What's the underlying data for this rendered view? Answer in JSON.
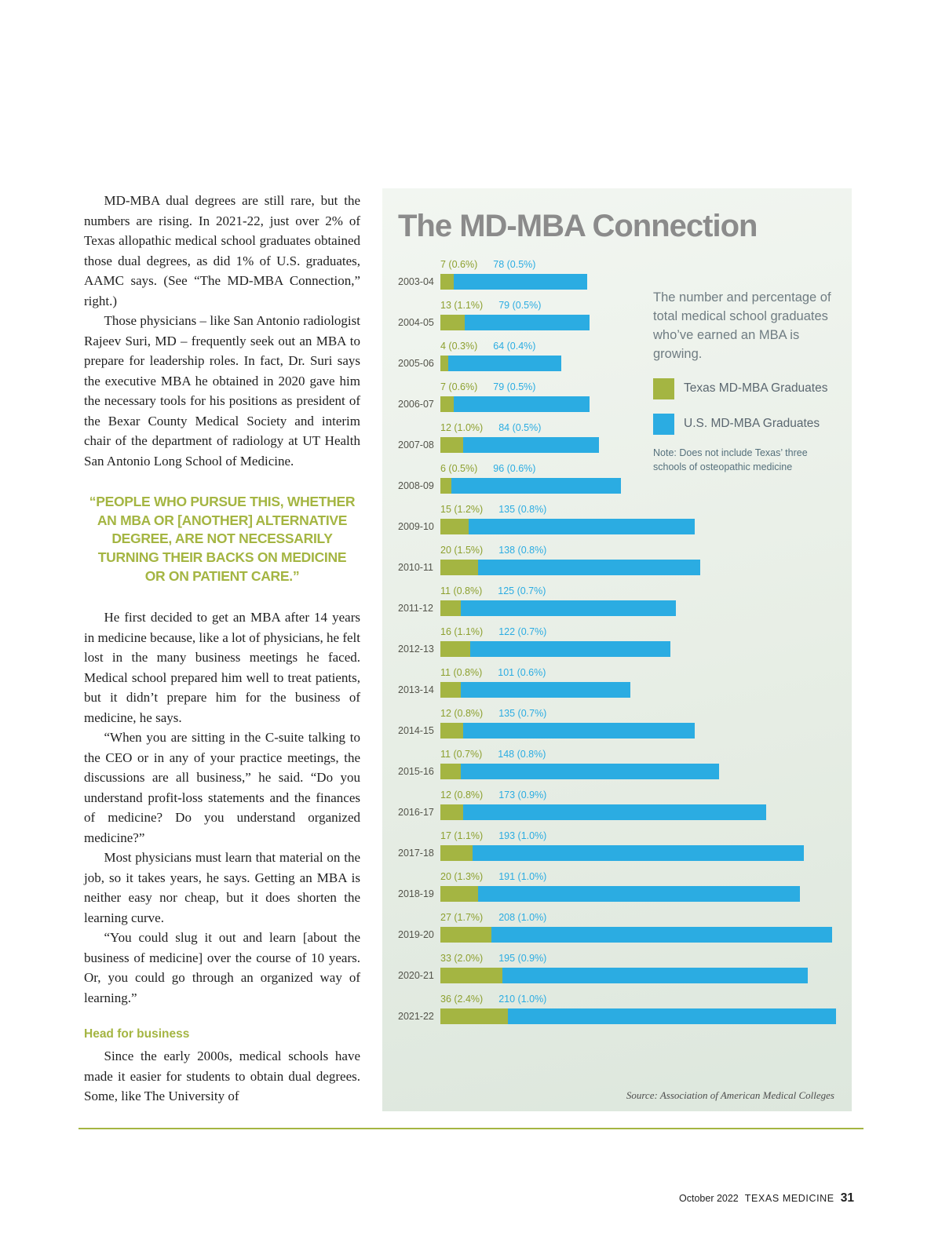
{
  "article": {
    "intro_paragraphs": [
      "MD-MBA dual degrees are still rare, but the numbers are rising. In 2021-22, just over 2% of Texas allopathic medical school graduates obtained those dual degrees, as did 1% of U.S. graduates, AAMC says. (See “The MD-MBA Connection,” right.)",
      "Those physicians – like San Antonio radiologist Rajeev Suri, MD – frequently seek out an MBA to prepare for leadership roles. In fact, Dr. Suri says the executive MBA he obtained in 2020 gave him the necessary tools for his positions as president of the Bexar County Medical Society and interim chair of the department of radiology at UT Health San Antonio Long School of Medicine."
    ],
    "pull_quote": "“People who pursue this, whether an MBA or [another] alternative degree, are not necessarily turning their backs on medicine or on patient care.”",
    "body_paragraphs": [
      "He first decided to get an MBA after 14 years in medicine because, like a lot of physicians, he felt lost in the many business meetings he faced. Medical school prepared him well to treat patients, but it didn’t prepare him for the business of medicine, he says.",
      "“When you are sitting in the C-suite talking to the CEO or in any of your practice meetings, the discussions are all business,” he said. “Do you understand profit-loss statements and the finances of medicine? Do you understand organized medicine?”",
      "Most physicians must learn that material on the job, so it takes years, he says. Getting an MBA is neither easy nor cheap, but it does shorten the learning curve.",
      "“You could slug it out and learn [about the business of medicine] over the course of 10 years. Or, you could go through an organized way of learning.”"
    ],
    "subhead": "Head for business",
    "final_paragraph": "Since the early 2000s, medical schools have made it easier for students to obtain dual degrees. Some, like The University of"
  },
  "chart": {
    "title": "The MD-MBA Connection",
    "description": "The number and percentage of total medical school graduates who’ve earned an MBA is growing.",
    "legend": [
      {
        "label": "Texas MD-MBA Graduates",
        "color": "#a4b542"
      },
      {
        "label": "U.S. MD-MBA Graduates",
        "color": "#2bace2"
      }
    ],
    "note": "Note: Does not include Texas’ three schools of osteopathic medicine",
    "source": "Source: Association of American Medical Colleges"
  },
  "chart_data": {
    "type": "bar",
    "orientation": "horizontal",
    "title": "The MD-MBA Connection",
    "categories": [
      "2003-04",
      "2004-05",
      "2005-06",
      "2006-07",
      "2007-08",
      "2008-09",
      "2009-10",
      "2010-11",
      "2011-12",
      "2012-13",
      "2013-14",
      "2014-15",
      "2015-16",
      "2016-17",
      "2017-18",
      "2018-19",
      "2019-20",
      "2020-21",
      "2021-22"
    ],
    "series": [
      {
        "name": "Texas MD-MBA Graduates",
        "color": "#a4b542",
        "values": [
          7,
          13,
          4,
          7,
          12,
          6,
          15,
          20,
          11,
          16,
          11,
          12,
          11,
          12,
          17,
          20,
          27,
          33,
          36
        ],
        "labels": [
          "7 (0.6%)",
          "13 (1.1%)",
          "4 (0.3%)",
          "7 (0.6%)",
          "12 (1.0%)",
          "6 (0.5%)",
          "15 (1.2%)",
          "20 (1.5%)",
          "11 (0.8%)",
          "16 (1.1%)",
          "11 (0.8%)",
          "12 (0.8%)",
          "11 (0.7%)",
          "12 (0.8%)",
          "17 (1.1%)",
          "20 (1.3%)",
          "27 (1.7%)",
          "33 (2.0%)",
          "36 (2.4%)"
        ]
      },
      {
        "name": "U.S. MD-MBA Graduates",
        "color": "#2bace2",
        "values": [
          78,
          79,
          64,
          79,
          84,
          96,
          135,
          138,
          125,
          122,
          101,
          135,
          148,
          173,
          193,
          191,
          208,
          195,
          210
        ],
        "labels": [
          "78 (0.5%)",
          "79 (0.5%)",
          "64 (0.4%)",
          "79 (0.5%)",
          "84 (0.5%)",
          "96 (0.6%)",
          "135 (0.8%)",
          "138 (0.8%)",
          "125 (0.7%)",
          "122 (0.7%)",
          "101 (0.6%)",
          "135 (0.7%)",
          "148 (0.8%)",
          "173 (0.9%)",
          "193 (1.0%)",
          "191 (1.0%)",
          "208 (1.0%)",
          "195 (0.9%)",
          "210 (1.0%)"
        ]
      }
    ],
    "x_max": 210,
    "legend_position": "right-top",
    "grid": false
  },
  "footer": {
    "issue": "October 2022",
    "magazine": "TEXAS MEDICINE",
    "page_number": "31"
  }
}
